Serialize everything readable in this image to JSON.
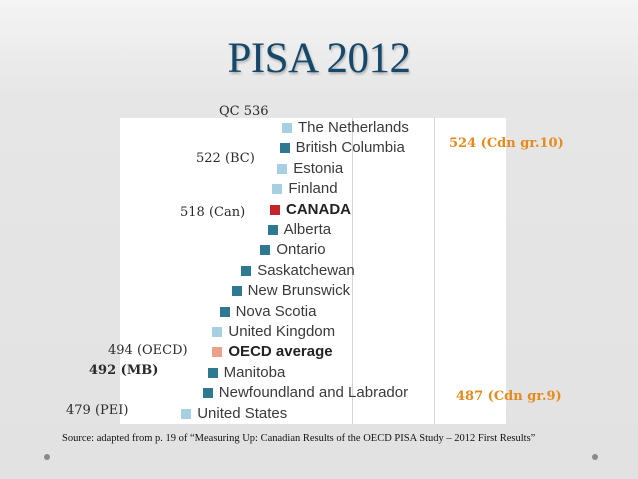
{
  "title": "PISA 2012",
  "chart_data": {
    "type": "scatter",
    "title": "",
    "xlabel": "",
    "ylabel": "",
    "categories": [
      "The Netherlands",
      "British Columbia",
      "Estonia",
      "Finland",
      "CANADA",
      "Alberta",
      "Ontario",
      "Saskatchewan",
      "New Brunswick",
      "Nova Scotia",
      "United Kingdom",
      "OECD average",
      "Manitoba",
      "Newfoundland and Labrador",
      "United States"
    ],
    "values": [
      523,
      522,
      521,
      519,
      518,
      517,
      514,
      506,
      502,
      497,
      494,
      494,
      492,
      490,
      481
    ],
    "bold_categories": [
      "CANADA",
      "OECD average"
    ],
    "marker_types": [
      "country",
      "province",
      "country",
      "country",
      "canada",
      "province",
      "province",
      "province",
      "province",
      "province",
      "country",
      "oecd",
      "province",
      "province",
      "country"
    ],
    "marker_colors": {
      "country": "#a6cfe2",
      "province": "#2f7892",
      "canada": "#c4242a",
      "oecd": "#eaa18a"
    },
    "annotations_left": [
      {
        "text": "QC 536",
        "row": -1,
        "bold": false
      },
      {
        "text": "522 (BC)",
        "row": 1,
        "bold": false
      },
      {
        "text": "518 (Can)",
        "row": 4,
        "bold": false
      },
      {
        "text": "494 (OECD)",
        "row": 11,
        "bold": false
      },
      {
        "text": "492 (MB)",
        "row": 12,
        "bold": true
      },
      {
        "text": "479 (PEI)",
        "row": 14,
        "bold": false
      }
    ],
    "annotations_right": [
      {
        "text": "524 (Cdn gr.10)",
        "row": 1
      },
      {
        "text": "487 (Cdn gr.9)",
        "row": 13
      }
    ]
  },
  "source": "Source: adapted from p. 19 of “Measuring Up: Canadian Results of the OECD PISA Study – 2012 First Results”"
}
